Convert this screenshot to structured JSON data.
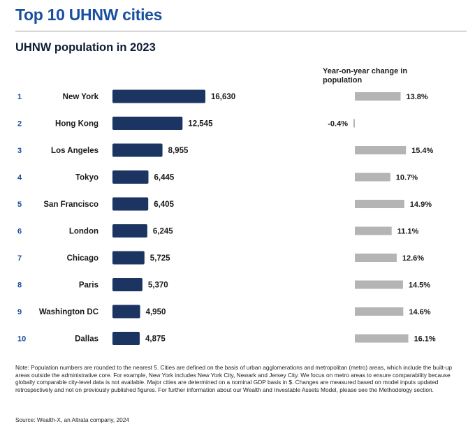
{
  "title": "Top 10 UHNW cities",
  "note": "Note: Population numbers are rounded to the nearest 5. Cities are defined on the basis of urban agglomerations and metropolitan (metro) areas, which include the built-up areas outside the administrative core. For example, New York includes New York City, Newark and Jersey City. We focus on metro areas to ensure comparability because globally comparable city-level data is not available. Major cities are determined on a nominal GDP basis in $. Changes are measured based on model inputs updated retrospectively and not on previously published figures. For further information about our Wealth and Investable Assets Model, please see the Methodology section.",
  "source": "Source: Wealth-X, an Altrata company, 2024",
  "colors": {
    "title": "#1a4fa0",
    "population_bar": "#1b3462",
    "yoy_bar": "#b4b4b4"
  },
  "chart_data": [
    {
      "type": "bar",
      "orientation": "horizontal",
      "title": "UHNW population in 2023",
      "ranks": [
        "1",
        "2",
        "3",
        "4",
        "5",
        "6",
        "7",
        "8",
        "9",
        "10"
      ],
      "categories": [
        "New York",
        "Hong Kong",
        "Los Angeles",
        "Tokyo",
        "San Francisco",
        "London",
        "Chicago",
        "Paris",
        "Washington DC",
        "Dallas"
      ],
      "values": [
        16630,
        12545,
        8955,
        6445,
        6405,
        6245,
        5725,
        5370,
        4950,
        4875
      ],
      "value_labels": [
        "16,630",
        "12,545",
        "8,955",
        "6,445",
        "6,405",
        "6,245",
        "5,725",
        "5,370",
        "4,950",
        "4,875"
      ]
    },
    {
      "type": "bar",
      "orientation": "horizontal",
      "title": "Year-on-year change in population",
      "categories": [
        "New York",
        "Hong Kong",
        "Los Angeles",
        "Tokyo",
        "San Francisco",
        "London",
        "Chicago",
        "Paris",
        "Washington DC",
        "Dallas"
      ],
      "values": [
        13.8,
        -0.4,
        15.4,
        10.7,
        14.9,
        11.1,
        12.6,
        14.5,
        14.6,
        16.1
      ],
      "value_labels": [
        "13.8%",
        "-0.4%",
        "15.4%",
        "10.7%",
        "14.9%",
        "11.1%",
        "12.6%",
        "14.5%",
        "14.6%",
        "16.1%"
      ],
      "unit": "%"
    }
  ]
}
